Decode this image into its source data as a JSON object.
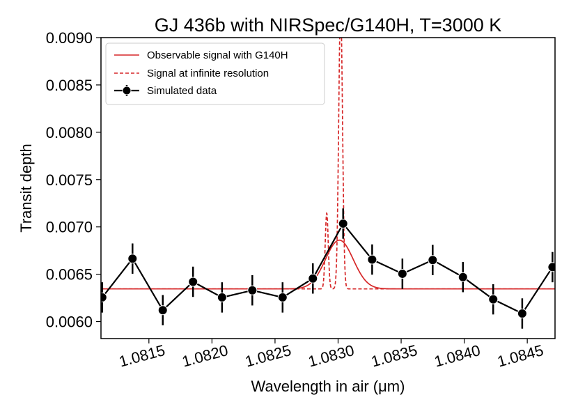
{
  "chart_data": {
    "type": "line",
    "title": "GJ 436b with NIRSpec/G140H, T=3000 K",
    "xlabel": "Wavelength in air (μm)",
    "ylabel": "Transit depth",
    "xlim": [
      1.08112,
      1.08472
    ],
    "ylim": [
      0.00582,
      0.009
    ],
    "xticks": [
      1.0815,
      1.082,
      1.0825,
      1.083,
      1.0835,
      1.084,
      1.0845
    ],
    "xtick_labels": [
      "1.0815",
      "1.0820",
      "1.0825",
      "1.0830",
      "1.0835",
      "1.0840",
      "1.0845"
    ],
    "yticks": [
      0.006,
      0.0065,
      0.007,
      0.0075,
      0.008,
      0.0085,
      0.009
    ],
    "ytick_labels": [
      "0.0060",
      "0.0065",
      "0.0070",
      "0.0075",
      "0.0080",
      "0.0085",
      "0.0090"
    ],
    "grid": false,
    "legend_position": "top-left",
    "series": [
      {
        "name": "Observable signal with G140H",
        "style": "solid",
        "color": "#d62728",
        "baseline": 0.006345,
        "gaussians": [
          {
            "center": 1.08301,
            "sigma": 0.00011,
            "amp": 0.000515
          }
        ]
      },
      {
        "name": "Signal at infinite resolution",
        "style": "dashed",
        "color": "#d62728",
        "baseline": 0.006345,
        "gaussians": [
          {
            "center": 1.08291,
            "sigma": 1.2e-05,
            "amp": 0.0008
          },
          {
            "center": 1.08302,
            "sigma": 1.5e-05,
            "amp": 0.003
          }
        ]
      },
      {
        "name": "Simulated data",
        "style": "errorbar",
        "color": "#000000",
        "points": [
          {
            "x": 1.08113,
            "y": 0.006255,
            "err": 0.00016
          },
          {
            "x": 1.08137,
            "y": 0.006665,
            "err": 0.00016
          },
          {
            "x": 1.08161,
            "y": 0.00612,
            "err": 0.00016
          },
          {
            "x": 1.08185,
            "y": 0.00642,
            "err": 0.00016
          },
          {
            "x": 1.08208,
            "y": 0.006255,
            "err": 0.00016
          },
          {
            "x": 1.08232,
            "y": 0.00633,
            "err": 0.00016
          },
          {
            "x": 1.08256,
            "y": 0.006255,
            "err": 0.00016
          },
          {
            "x": 1.0828,
            "y": 0.006455,
            "err": 0.00016
          },
          {
            "x": 1.08304,
            "y": 0.007035,
            "err": 0.00016
          },
          {
            "x": 1.08327,
            "y": 0.006655,
            "err": 0.00016
          },
          {
            "x": 1.08351,
            "y": 0.006505,
            "err": 0.00016
          },
          {
            "x": 1.08375,
            "y": 0.00665,
            "err": 0.00016
          },
          {
            "x": 1.08399,
            "y": 0.00647,
            "err": 0.00016
          },
          {
            "x": 1.08423,
            "y": 0.006235,
            "err": 0.00016
          },
          {
            "x": 1.08446,
            "y": 0.006085,
            "err": 0.00016
          },
          {
            "x": 1.0847,
            "y": 0.006575,
            "err": 0.00016
          }
        ]
      }
    ]
  }
}
